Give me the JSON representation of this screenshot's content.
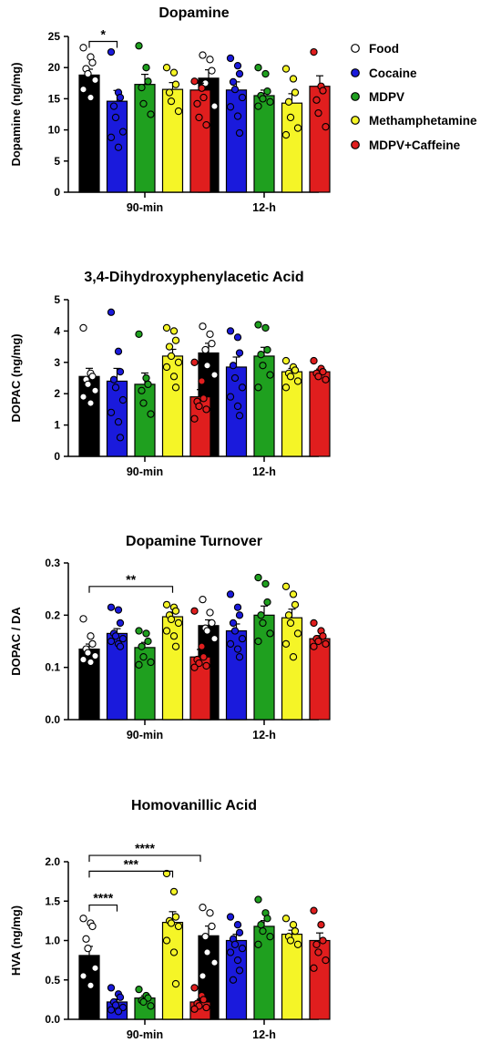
{
  "colors": {
    "Food": "#000000",
    "Cocaine": "#1a1adc",
    "MDPV": "#1fa01f",
    "Methamphetamine": "#f5f527",
    "MDPV+Caffeine": "#e01e1e",
    "Food_dot_fill": "#ffffff"
  },
  "legend": {
    "placement": "right of top chart",
    "entries": [
      "Food",
      "Cocaine",
      "MDPV",
      "Methamphetamine",
      "MDPV+Caffeine"
    ]
  },
  "chart_data": [
    {
      "type": "bar",
      "title": "Dopamine",
      "ylabel": "Dopamine (ng/mg)",
      "ylim": [
        0,
        25
      ],
      "yticks": [
        "0",
        "5",
        "10",
        "15",
        "20",
        "25"
      ],
      "categories": [
        "90-min",
        "12-h"
      ],
      "series": [
        {
          "name": "Food",
          "values": [
            18.8,
            18.3
          ],
          "points": [
            [
              23.2,
              21.7,
              20.8,
              19.8,
              19.0,
              18.0,
              16.5,
              15.2
            ],
            [
              22.0,
              21.3,
              19.5,
              17.5,
              15.3,
              13.8
            ]
          ]
        },
        {
          "name": "Cocaine",
          "values": [
            14.6,
            16.4
          ],
          "points": [
            [
              22.5,
              16.0,
              15.2,
              13.8,
              12.0,
              9.7,
              8.8,
              7.2
            ],
            [
              21.5,
              20.3,
              19.0,
              17.7,
              16.5,
              15.2,
              13.7,
              12.2,
              9.5
            ]
          ]
        },
        {
          "name": "MDPV",
          "values": [
            17.3,
            15.5
          ],
          "points": [
            [
              23.5,
              20.0,
              17.8,
              16.8,
              14.2,
              12.5
            ],
            [
              20.0,
              19.0,
              16.2,
              15.5,
              15.0,
              14.5,
              13.8
            ]
          ]
        },
        {
          "name": "Methamphetamine",
          "values": [
            16.5,
            14.3
          ],
          "points": [
            [
              20.0,
              19.2,
              17.3,
              16.0,
              14.6,
              13.0
            ],
            [
              19.8,
              18.2,
              16.0,
              14.5,
              12.0,
              10.3,
              9.2
            ]
          ]
        },
        {
          "name": "MDPV+Caffeine",
          "values": [
            16.4,
            17.0
          ],
          "points": [
            [
              17.8,
              16.7,
              15.2,
              14.2,
              12.0,
              10.8
            ],
            [
              22.5,
              17.0,
              16.3,
              14.8,
              12.7,
              10.5
            ]
          ]
        }
      ],
      "significance": [
        {
          "from": "Food",
          "to": "Cocaine",
          "group": "90-min",
          "label": "*"
        }
      ]
    },
    {
      "type": "bar",
      "title": "3,4-Dihydroxyphenylacetic Acid",
      "ylabel": "DOPAC (ng/mg)",
      "ylim": [
        0,
        5
      ],
      "yticks": [
        "0",
        "1",
        "2",
        "3",
        "4",
        "5"
      ],
      "categories": [
        "90-min",
        "12-h"
      ],
      "series": [
        {
          "name": "Food",
          "values": [
            2.55,
            3.3
          ],
          "points": [
            [
              4.1,
              2.65,
              2.55,
              2.45,
              2.3,
              2.1,
              1.9,
              1.7
            ],
            [
              4.15,
              3.9,
              3.6,
              3.4,
              2.9,
              2.6,
              1.8
            ]
          ]
        },
        {
          "name": "Cocaine",
          "values": [
            2.4,
            2.85
          ],
          "points": [
            [
              4.6,
              3.35,
              2.7,
              2.45,
              2.2,
              1.8,
              1.4,
              1.1,
              0.6
            ],
            [
              4.0,
              3.8,
              3.3,
              2.9,
              2.5,
              2.2,
              1.9,
              1.6,
              1.3
            ]
          ]
        },
        {
          "name": "MDPV",
          "values": [
            2.3,
            3.2
          ],
          "points": [
            [
              3.9,
              2.5,
              2.3,
              2.1,
              1.7,
              1.35
            ],
            [
              4.2,
              4.1,
              3.4,
              3.25,
              2.9,
              2.6,
              2.2
            ]
          ]
        },
        {
          "name": "Methamphetamine",
          "values": [
            3.2,
            2.7
          ],
          "points": [
            [
              4.1,
              4.0,
              3.7,
              3.5,
              3.2,
              3.0,
              2.85,
              2.55,
              2.2
            ],
            [
              3.05,
              2.85,
              2.75,
              2.65,
              2.55,
              2.4,
              2.2
            ]
          ]
        },
        {
          "name": "MDPV+Caffeine",
          "values": [
            1.9,
            2.7
          ],
          "points": [
            [
              3.0,
              2.4,
              1.85,
              1.75,
              1.6,
              1.5,
              1.2
            ],
            [
              3.05,
              2.8,
              2.7,
              2.65,
              2.55,
              2.45
            ]
          ]
        }
      ]
    },
    {
      "type": "bar",
      "title": "Dopamine Turnover",
      "ylabel": "DOPAC / DA",
      "ylim": [
        0,
        0.3
      ],
      "yticks": [
        "0.0",
        "0.1",
        "0.2",
        "0.3"
      ],
      "categories": [
        "90-min",
        "12-h"
      ],
      "series": [
        {
          "name": "Food",
          "values": [
            0.135,
            0.18
          ],
          "points": [
            [
              0.193,
              0.16,
              0.145,
              0.135,
              0.128,
              0.122,
              0.115,
              0.11
            ],
            [
              0.23,
              0.205,
              0.185,
              0.175,
              0.17,
              0.155
            ]
          ]
        },
        {
          "name": "Cocaine",
          "values": [
            0.165,
            0.17
          ],
          "points": [
            [
              0.215,
              0.21,
              0.185,
              0.165,
              0.16,
              0.155,
              0.15,
              0.145,
              0.14
            ],
            [
              0.24,
              0.215,
              0.2,
              0.185,
              0.17,
              0.155,
              0.145,
              0.135,
              0.12
            ]
          ]
        },
        {
          "name": "MDPV",
          "values": [
            0.138,
            0.2
          ],
          "points": [
            [
              0.17,
              0.165,
              0.15,
              0.14,
              0.12,
              0.11,
              0.105
            ],
            [
              0.272,
              0.26,
              0.225,
              0.2,
              0.185,
              0.165,
              0.15
            ]
          ]
        },
        {
          "name": "Methamphetamine",
          "values": [
            0.197,
            0.195
          ],
          "points": [
            [
              0.22,
              0.215,
              0.208,
              0.2,
              0.192,
              0.185,
              0.17,
              0.16,
              0.14
            ],
            [
              0.255,
              0.24,
              0.22,
              0.2,
              0.185,
              0.165,
              0.145,
              0.12
            ]
          ]
        },
        {
          "name": "MDPV+Caffeine",
          "values": [
            0.12,
            0.155
          ],
          "points": [
            [
              0.208,
              0.14,
              0.12,
              0.115,
              0.108,
              0.103,
              0.1
            ],
            [
              0.185,
              0.17,
              0.16,
              0.155,
              0.15,
              0.145,
              0.14
            ]
          ]
        }
      ],
      "significance": [
        {
          "from": "Food",
          "to": "Methamphetamine",
          "group": "90-min",
          "label": "**"
        }
      ]
    },
    {
      "type": "bar",
      "title": "Homovanillic Acid",
      "ylabel": "HVA (ng/mg)",
      "ylim": [
        0,
        2.0
      ],
      "yticks": [
        "0.0",
        "0.5",
        "1.0",
        "1.5",
        "2.0"
      ],
      "categories": [
        "90-min",
        "12-h"
      ],
      "series": [
        {
          "name": "Food",
          "values": [
            0.81,
            1.06
          ],
          "points": [
            [
              1.28,
              1.22,
              1.18,
              1.02,
              0.9,
              0.65,
              0.55,
              0.43
            ],
            [
              1.42,
              1.35,
              1.18,
              1.05,
              0.85,
              0.72,
              0.55
            ]
          ]
        },
        {
          "name": "Cocaine",
          "values": [
            0.22,
            1.0
          ],
          "points": [
            [
              0.4,
              0.32,
              0.28,
              0.22,
              0.18,
              0.15,
              0.12,
              0.1
            ],
            [
              1.3,
              1.2,
              1.1,
              1.02,
              0.95,
              0.9,
              0.85,
              0.75,
              0.62,
              0.5
            ]
          ]
        },
        {
          "name": "MDPV",
          "values": [
            0.27,
            1.18
          ],
          "points": [
            [
              0.38,
              0.3,
              0.27,
              0.24,
              0.22,
              0.17
            ],
            [
              1.52,
              1.35,
              1.28,
              1.2,
              1.12,
              1.05,
              0.95
            ]
          ]
        },
        {
          "name": "Methamphetamine",
          "values": [
            1.23,
            1.08
          ],
          "points": [
            [
              1.85,
              1.62,
              1.3,
              1.25,
              1.22,
              1.18,
              1.0,
              0.85,
              0.45
            ],
            [
              1.28,
              1.2,
              1.12,
              1.05,
              1.0,
              0.95
            ]
          ]
        },
        {
          "name": "MDPV+Caffeine",
          "values": [
            0.22,
            1.0
          ],
          "points": [
            [
              0.4,
              0.3,
              0.25,
              0.2,
              0.17,
              0.15,
              0.13
            ],
            [
              1.38,
              1.2,
              1.0,
              0.95,
              0.85,
              0.75,
              0.65
            ]
          ]
        }
      ],
      "significance": [
        {
          "from": "Food",
          "to": "Cocaine",
          "group": "90-min",
          "label": "****"
        },
        {
          "from": "Food",
          "to": "Methamphetamine",
          "group": "90-min",
          "label": "***"
        },
        {
          "from": "Food",
          "to": "MDPV+Caffeine",
          "group": "90-min",
          "label": "****"
        }
      ]
    }
  ]
}
